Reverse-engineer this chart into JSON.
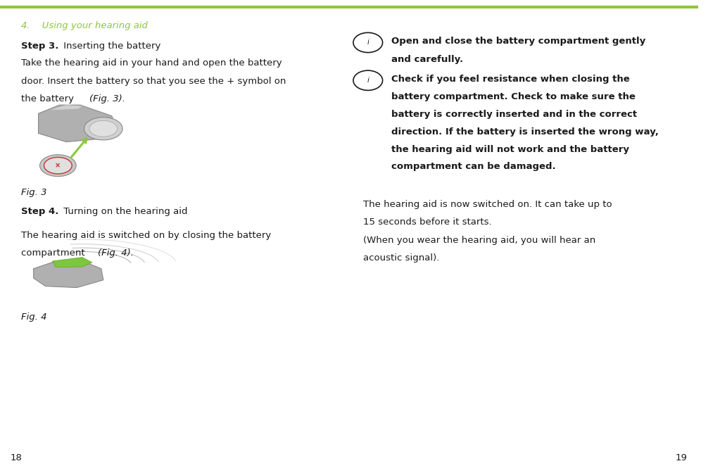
{
  "bg_color": "#ffffff",
  "top_line_color": "#8dc63f",
  "text_color": "#1a1a1a",
  "font_size": 9.5,
  "bold_size": 9.5,
  "icon_color": "#1a1a1a",
  "section_title_color": "#8dc63f",
  "section_title_size": 9.5,
  "left_col": {
    "section_title": "4.    Using your hearing aid",
    "step3_bold": "Step 3.",
    "step3_text": " Inserting the battery",
    "step3_body_line1": "Take the hearing aid in your hand and open the battery",
    "step3_body_line2": "door. Insert the battery so that you see the + symbol on",
    "step3_body_line3": "the battery ",
    "step3_italic": "(Fig. 3).",
    "fig3_label": "Fig. 3",
    "step4_bold": "Step 4.",
    "step4_text": " Turning on the hearing aid",
    "step4_body_line1": "The hearing aid is switched on by closing the battery",
    "step4_body_line2": "compartment ",
    "step4_italic": "(Fig. 4).",
    "fig4_label": "Fig. 4",
    "page_num": "18"
  },
  "right_col": {
    "info1_line1": "Open and close the battery compartment gently",
    "info1_line2": "and carefully.",
    "info2_line1": "Check if you feel resistance when closing the",
    "info2_line2": "battery compartment. Check to make sure the",
    "info2_line3": "battery is correctly inserted and in the correct",
    "info2_line4": "direction. If the battery is inserted the wrong way,",
    "info2_line5": "the hearing aid will not work and the battery",
    "info2_line6": "compartment can be damaged.",
    "body_line1": "The hearing aid is now switched on. It can take up to",
    "body_line2": "15 seconds before it starts.",
    "body_line3": "(When you wear the hearing aid, you will hear an",
    "body_line4": "acoustic signal).",
    "page_num": "19"
  },
  "green_arrow_color": "#8dc63f",
  "gray_body_color": "#b0b0b0",
  "gray_edge_color": "#888888",
  "gray_light_color": "#d0d0d0",
  "gray_inner_color": "#e0e0e0",
  "door_green_color": "#7dc63f"
}
